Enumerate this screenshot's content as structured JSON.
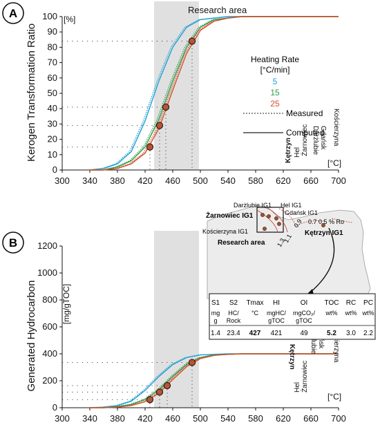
{
  "panel_a": {
    "letter": "A",
    "research_area": "Research area",
    "y_unit": "[%]",
    "x_unit": "[°C]",
    "ylabel": "Kerogen Transformation Ratio",
    "legend_title_1": "Heating Rate",
    "legend_title_2": "[°C/min]",
    "legend_measured": "Measured",
    "legend_computed": "Computed",
    "well_labels": [
      "Kętrzyn",
      "Hel",
      "Żarnowiec",
      "Darżlubie",
      "Gdańsk",
      "Kościerzyna"
    ]
  },
  "panel_b": {
    "letter": "B",
    "y_unit": "[mg/gTOC]",
    "x_unit": "[°C]",
    "ylabel": "Generated Hydrocarbon",
    "well_labels": [
      "Kętrzyn",
      "Hel",
      "Żarnowiec",
      "Darżlubie",
      "Gdańsk",
      "Kościerzyna"
    ]
  },
  "map": {
    "research_area": "Research area",
    "wells": [
      "Żarnowiec IG1",
      "Darżlubie IG1",
      "Hel IG1",
      "Gdańsk IG1",
      "Kościerzyna IG1",
      "Kętrzyn IG1"
    ],
    "ro_label": "0.7 0.5 % Ro",
    "iso_labels": [
      "0.9",
      "1.1",
      "1.3"
    ]
  },
  "table": {
    "headers": [
      "S1",
      "S2",
      "Tmax",
      "HI",
      "OI",
      "TOC",
      "RC",
      "PC"
    ],
    "units": [
      "mg",
      "HC/",
      "°C",
      "mgHC/",
      "mgCO₂/",
      "wt%",
      "wt%",
      "wt%"
    ],
    "units2": [
      "g",
      "Rock",
      "",
      "gTOC",
      "gTOC",
      "",
      "",
      ""
    ],
    "values": [
      "1.4",
      "23.4",
      "427",
      "421",
      "49",
      "5.2",
      "3.0",
      "2.2"
    ]
  },
  "chart_data": [
    {
      "type": "line",
      "xlabel": "[°C]",
      "ylabel": "Kerogen Transformation Ratio",
      "xlim": [
        300,
        700
      ],
      "ylim": [
        0,
        100
      ],
      "x_ticks": [
        300,
        340,
        380,
        420,
        460,
        500,
        540,
        580,
        620,
        660,
        700
      ],
      "y_ticks": [
        0,
        10,
        20,
        30,
        40,
        50,
        60,
        70,
        80,
        90,
        100
      ],
      "research_area_x": [
        433,
        498
      ],
      "legend": [
        "5",
        "15",
        "25"
      ],
      "series": [
        {
          "name": "5",
          "color": "#1f9fd6",
          "x": [
            340,
            360,
            380,
            400,
            420,
            440,
            460,
            480,
            500,
            520,
            540,
            560,
            700
          ],
          "y": [
            0,
            1,
            4,
            12,
            32,
            58,
            80,
            93,
            98,
            99,
            100,
            100,
            100
          ]
        },
        {
          "name": "15",
          "color": "#2e9b4a",
          "x": [
            340,
            360,
            380,
            400,
            420,
            440,
            460,
            480,
            500,
            520,
            540,
            560,
            700
          ],
          "y": [
            0,
            0,
            2,
            6,
            15,
            33,
            58,
            80,
            93,
            98,
            99,
            100,
            100
          ]
        },
        {
          "name": "25",
          "color": "#d2502a",
          "x": [
            340,
            360,
            380,
            400,
            420,
            440,
            460,
            480,
            500,
            520,
            540,
            560,
            700
          ],
          "y": [
            0,
            0,
            1,
            4,
            11,
            27,
            52,
            76,
            91,
            97,
            99,
            100,
            100
          ]
        }
      ],
      "points": [
        {
          "label": "Kętrzyn",
          "x": 427,
          "y": 15
        },
        {
          "label": "Hel Żarnowiec",
          "x": 441,
          "y": 29
        },
        {
          "label": "Darżlubie Gdańsk",
          "x": 450,
          "y": 41
        },
        {
          "label": "Kościerzyna",
          "x": 488,
          "y": 84
        }
      ]
    },
    {
      "type": "line",
      "xlabel": "[°C]",
      "ylabel": "Generated Hydrocarbon",
      "xlim": [
        300,
        700
      ],
      "ylim": [
        0,
        1200
      ],
      "x_ticks": [
        300,
        340,
        380,
        420,
        460,
        500,
        540,
        580,
        620,
        660,
        700
      ],
      "y_ticks": [
        0,
        200,
        400,
        600,
        800,
        1000,
        1200
      ],
      "research_area_x": [
        433,
        498
      ],
      "series": [
        {
          "name": "5",
          "color": "#1f9fd6",
          "x": [
            340,
            360,
            380,
            400,
            420,
            440,
            460,
            480,
            500,
            520,
            540,
            560,
            700
          ],
          "y": [
            0,
            4,
            16,
            48,
            128,
            232,
            320,
            372,
            392,
            396,
            400,
            400,
            400
          ]
        },
        {
          "name": "15",
          "color": "#2e9b4a",
          "x": [
            340,
            360,
            380,
            400,
            420,
            440,
            460,
            480,
            500,
            520,
            540,
            560,
            700
          ],
          "y": [
            0,
            0,
            8,
            24,
            60,
            132,
            232,
            320,
            372,
            392,
            396,
            400,
            400
          ]
        },
        {
          "name": "25",
          "color": "#d2502a",
          "x": [
            340,
            360,
            380,
            400,
            420,
            440,
            460,
            480,
            500,
            520,
            540,
            560,
            700
          ],
          "y": [
            0,
            0,
            4,
            16,
            44,
            108,
            208,
            304,
            364,
            388,
            396,
            400,
            400
          ]
        }
      ],
      "points": [
        {
          "label": "Kętrzyn",
          "x": 427,
          "y": 60
        },
        {
          "label": "Hel Żarnowiec",
          "x": 441,
          "y": 116
        },
        {
          "label": "Darżlubie Gdańsk",
          "x": 452,
          "y": 164
        },
        {
          "label": "Kościerzyna",
          "x": 488,
          "y": 336
        }
      ]
    }
  ]
}
